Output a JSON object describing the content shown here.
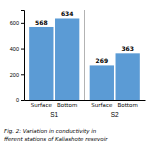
{
  "chart_data": {
    "type": "bar",
    "categories": [
      "S1",
      "S2"
    ],
    "series": [
      {
        "name": "Surface",
        "values": [
          568,
          269
        ]
      },
      {
        "name": "Bottom",
        "values": [
          634,
          363
        ]
      }
    ],
    "color": "#5B9BD5",
    "ylim": [
      0,
      700
    ],
    "yticks": [
      0,
      200,
      400,
      600
    ],
    "data_labels": true,
    "annotations": [
      "Fig. 2: Variation in conductivity in",
      "fferent stations of Kaliashote resevoir"
    ]
  }
}
